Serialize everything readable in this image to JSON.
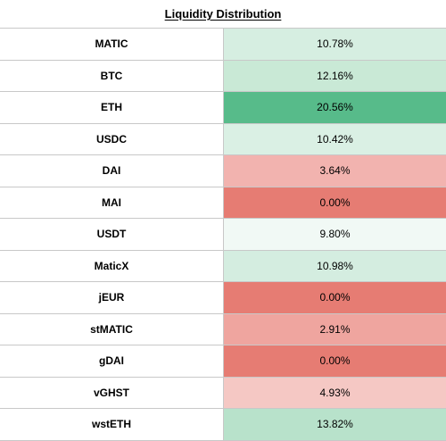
{
  "table": {
    "title": "Liquidity Distribution",
    "rows": [
      {
        "asset": "MATIC",
        "value": "10.78%",
        "color": "#d6eee1"
      },
      {
        "asset": "BTC",
        "value": "12.16%",
        "color": "#c9e9d6"
      },
      {
        "asset": "ETH",
        "value": "20.56%",
        "color": "#57bb8a"
      },
      {
        "asset": "USDC",
        "value": "10.42%",
        "color": "#daf0e4"
      },
      {
        "asset": "DAI",
        "value": "3.64%",
        "color": "#f2b3af"
      },
      {
        "asset": "MAI",
        "value": "0.00%",
        "color": "#e67c73"
      },
      {
        "asset": "USDT",
        "value": "9.80%",
        "color": "#f1f9f5"
      },
      {
        "asset": "MaticX",
        "value": "10.98%",
        "color": "#d4ede0"
      },
      {
        "asset": "jEUR",
        "value": "0.00%",
        "color": "#e67c73"
      },
      {
        "asset": "stMATIC",
        "value": "2.91%",
        "color": "#efa59f"
      },
      {
        "asset": "gDAI",
        "value": "0.00%",
        "color": "#e67c73"
      },
      {
        "asset": "vGHST",
        "value": "4.93%",
        "color": "#f5c8c4"
      },
      {
        "asset": "wstETH",
        "value": "13.82%",
        "color": "#b8e2cb"
      }
    ]
  }
}
